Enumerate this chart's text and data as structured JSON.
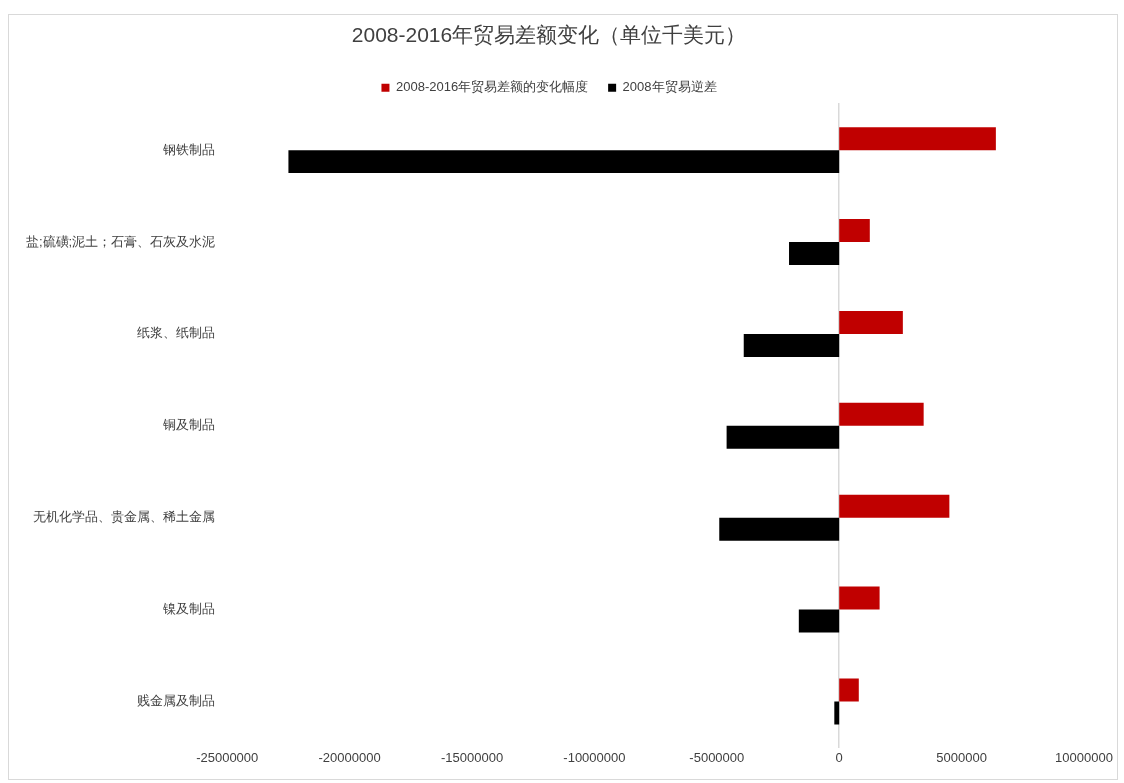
{
  "chart_data": {
    "type": "bar",
    "orientation": "horizontal",
    "title": "2008-2016年贸易差额变化（单位千美元）",
    "categories": [
      "钢铁制品",
      "盐;硫磺;泥土；石膏、石灰及水泥",
      "纸浆、纸制品",
      "铜及制品",
      "无机化学品、贵金属、稀土金属",
      "镍及制品",
      "贱金属及制品"
    ],
    "series": [
      {
        "name": "2008-2016年贸易差额的变化幅度",
        "color": "#c00000",
        "values": [
          6400000,
          1250000,
          2600000,
          3450000,
          4500000,
          1650000,
          800000
        ]
      },
      {
        "name": "2008年贸易逆差",
        "color": "#000000",
        "values": [
          -22500000,
          -2050000,
          -3900000,
          -4600000,
          -4900000,
          -1650000,
          -200000
        ]
      }
    ],
    "xlim": [
      -25000000,
      10000000
    ],
    "xticks": [
      -25000000,
      -20000000,
      -15000000,
      -10000000,
      -5000000,
      0,
      5000000,
      10000000
    ],
    "legend": "top"
  }
}
